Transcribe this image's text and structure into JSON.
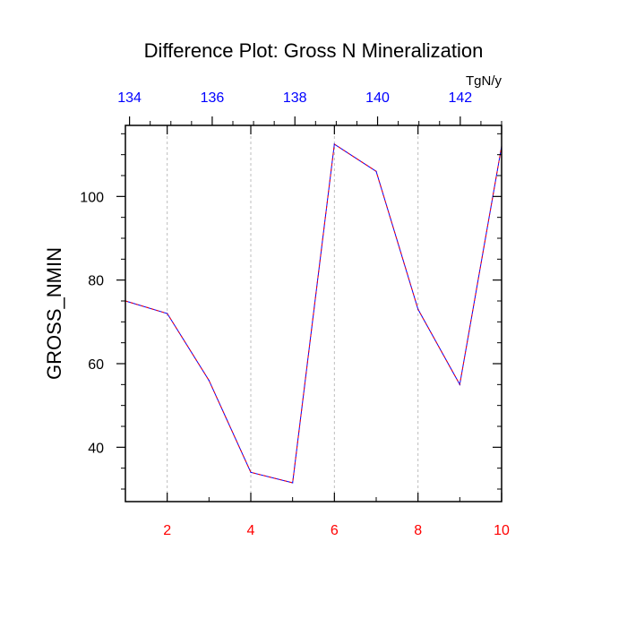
{
  "chart_data": {
    "type": "line",
    "title": "Difference Plot: Gross N Mineralization",
    "ylabel": "GROSS_NMIN",
    "units_label": "TgN/y",
    "xlim": [
      1,
      10
    ],
    "ylim": [
      27,
      117
    ],
    "x_ticks": [
      2,
      4,
      6,
      8,
      10
    ],
    "y_ticks": [
      40,
      60,
      80,
      100
    ],
    "top_axis": {
      "ticks": [
        134,
        136,
        138,
        140,
        142
      ],
      "range": [
        133.9,
        143
      ]
    },
    "grid": "vertical-dashed",
    "x_tick_color": "#ff0000",
    "top_tick_color": "#0000ff",
    "series": [
      {
        "color": "#0000ff",
        "overlay_color": "#ff0000",
        "x": [
          1,
          2,
          3,
          4,
          5,
          6,
          7,
          8,
          9,
          10
        ],
        "values": [
          75,
          72,
          56,
          34,
          31.5,
          112.5,
          106,
          73,
          55,
          112
        ]
      }
    ]
  }
}
